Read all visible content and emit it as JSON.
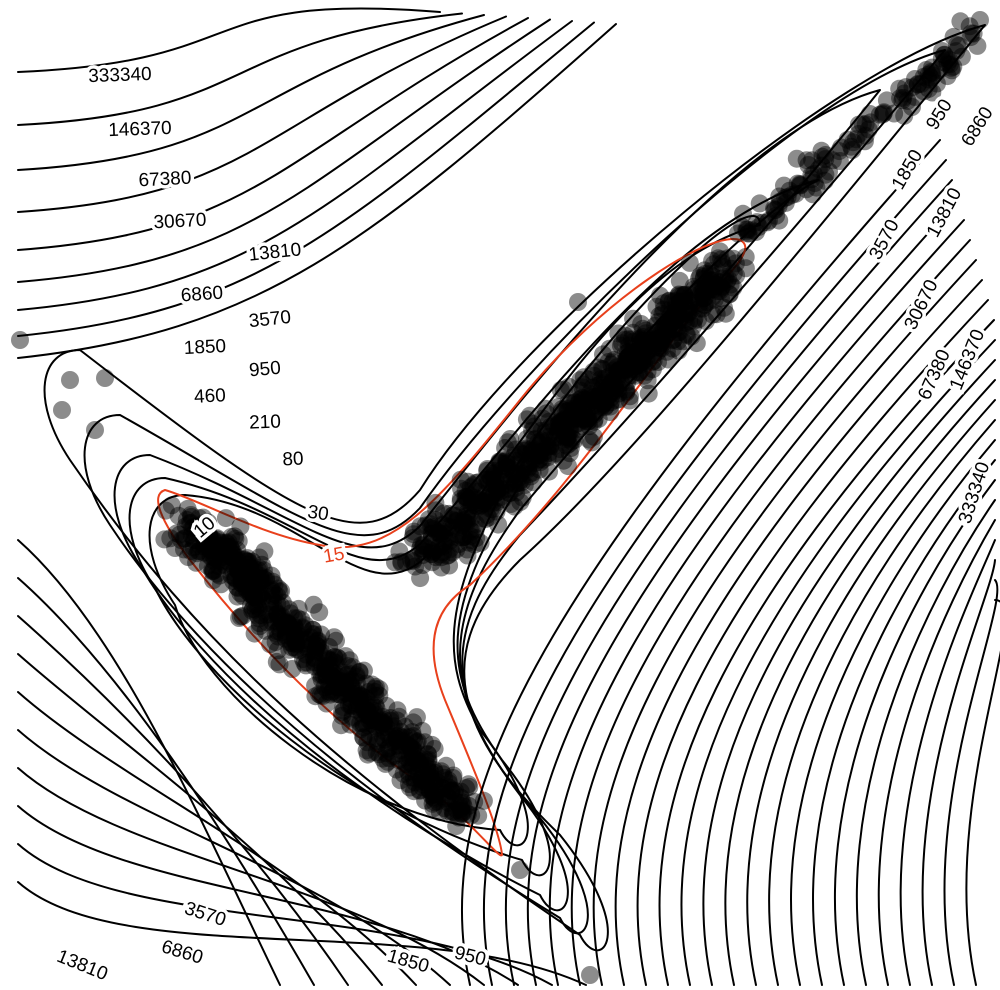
{
  "chart_data": {
    "type": "contour",
    "title": "",
    "xlabel": "",
    "ylabel": "",
    "grid": false,
    "legend": "none",
    "description_free": true,
    "contour_levels": [
      15,
      30,
      80,
      210,
      460,
      950,
      1850,
      3570,
      6860,
      13810,
      30670,
      67380,
      146370,
      333340
    ],
    "highlighted_level": 15,
    "printed_labels": {
      "upper_left": [
        "333340",
        "146370",
        "67380",
        "30670",
        "13810",
        "6860",
        "3570",
        "1850",
        "950",
        "460",
        "210",
        "80",
        "30",
        "15",
        "10"
      ],
      "upper_right": [
        "950",
        "1850",
        "6860",
        "3570",
        "13810",
        "30670",
        "67380",
        "146370",
        "333340"
      ],
      "bottom": [
        "3570",
        "6860",
        "1850",
        "950",
        "13810"
      ]
    },
    "colors": {
      "contour_line": "#000000",
      "highlight_line": "#e8401c",
      "points": "#000000"
    },
    "point_opacity": 0.45,
    "point_count_approx": 1500
  }
}
